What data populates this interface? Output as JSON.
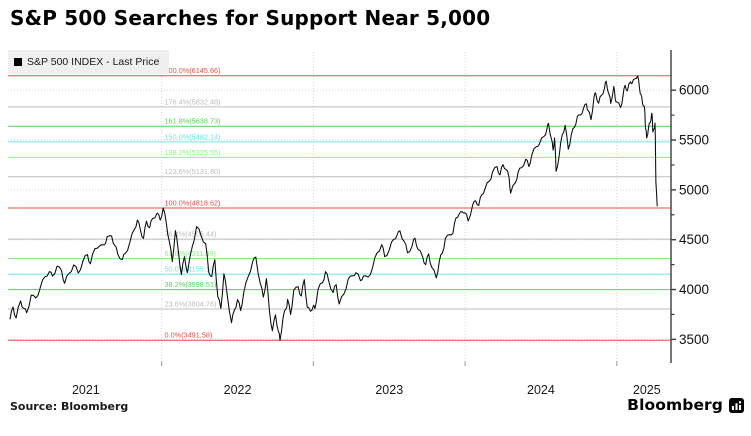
{
  "title": "S&P 500 Searches for Support Near 5,000",
  "legend": {
    "swatch": "■",
    "label": "S&P 500 INDEX - Last Price"
  },
  "source": "Source: Bloomberg",
  "brand": {
    "name": "Bloomberg",
    "logo": "bloomberg-logo-icon"
  },
  "chart_data": {
    "type": "line",
    "title": "S&P 500 Searches for Support Near 5,000",
    "xlabel": "",
    "ylabel": "",
    "grid": true,
    "grid_color": "#d6d6d6",
    "axis_color": "#3c3c3c",
    "tick_label_color": "#111111",
    "x_axis": {
      "years": [
        2021,
        2022,
        2023,
        2024,
        2025
      ]
    },
    "y_axis": {
      "side": "right",
      "major_ticks": [
        3500,
        4000,
        4500,
        5000,
        5500,
        6000
      ],
      "minor_ticks": [
        3750,
        4250,
        4750,
        5250,
        5750
      ],
      "range": [
        3350,
        6310
      ]
    },
    "fib_levels": [
      {
        "pct": "200.0%",
        "value": 6145.66,
        "label": "200.0%(6145.66)",
        "color": "#e2504d"
      },
      {
        "pct": "176.4%",
        "value": 5832.48,
        "label": "176.4%(5832.48)",
        "color": "#bdbdbd"
      },
      {
        "pct": "161.8%",
        "value": 5638.73,
        "label": "161.8%(5638.73)",
        "color": "#50d45a"
      },
      {
        "pct": "150.0%",
        "value": 5482.14,
        "label": "150.0%(5482.14)",
        "color": "#6ce6e3"
      },
      {
        "pct": "138.2%",
        "value": 5325.55,
        "label": "138.2%(5325.55)",
        "color": "#8feb8f"
      },
      {
        "pct": "123.6%",
        "value": 5131.8,
        "label": "123.6%(5131.80)",
        "color": "#bdbdbd"
      },
      {
        "pct": "100.0%",
        "value": 4818.62,
        "label": "100.0%(4818.62)",
        "color": "#e2504d"
      },
      {
        "pct": "76.4%",
        "value": 4505.44,
        "label": "76.4%(4505.44)",
        "color": "#bdbdbd"
      },
      {
        "pct": "61.8%",
        "value": 4311.69,
        "label": "61.8%(4311.69)",
        "color": "#8feb8f"
      },
      {
        "pct": "50.0%",
        "value": 4155.1,
        "label": "50.0%(4155.10)",
        "color": "#6ce6e3"
      },
      {
        "pct": "38.2%",
        "value": 3998.51,
        "label": "38.2%(3998.51)",
        "color": "#50d45a"
      },
      {
        "pct": "23.6%",
        "value": 3804.76,
        "label": "23.6%(3804.76)",
        "color": "#bdbdbd"
      },
      {
        "pct": "0.0%",
        "value": 3491.58,
        "label": "0.0%(3491.58)",
        "color": "#e2504d"
      }
    ],
    "series": [
      {
        "name": "S&P 500 INDEX - Last Price",
        "color": "#0a0a0a",
        "points": [
          [
            2021.0,
            3700
          ],
          [
            2021.02,
            3824
          ],
          [
            2021.04,
            3714
          ],
          [
            2021.07,
            3886
          ],
          [
            2021.09,
            3811
          ],
          [
            2021.11,
            3768
          ],
          [
            2021.14,
            3943
          ],
          [
            2021.17,
            3915
          ],
          [
            2021.2,
            4020
          ],
          [
            2021.23,
            4128
          ],
          [
            2021.26,
            4180
          ],
          [
            2021.28,
            4135
          ],
          [
            2021.31,
            4233
          ],
          [
            2021.34,
            4188
          ],
          [
            2021.36,
            4063
          ],
          [
            2021.39,
            4163
          ],
          [
            2021.42,
            4247
          ],
          [
            2021.45,
            4166
          ],
          [
            2021.48,
            4281
          ],
          [
            2021.51,
            4352
          ],
          [
            2021.53,
            4258
          ],
          [
            2021.56,
            4412
          ],
          [
            2021.59,
            4437
          ],
          [
            2021.62,
            4448
          ],
          [
            2021.64,
            4528
          ],
          [
            2021.67,
            4537
          ],
          [
            2021.69,
            4444
          ],
          [
            2021.71,
            4357
          ],
          [
            2021.74,
            4300
          ],
          [
            2021.76,
            4364
          ],
          [
            2021.79,
            4472
          ],
          [
            2021.82,
            4605
          ],
          [
            2021.84,
            4698
          ],
          [
            2021.86,
            4595
          ],
          [
            2021.88,
            4513
          ],
          [
            2021.9,
            4686
          ],
          [
            2021.92,
            4620
          ],
          [
            2021.94,
            4712
          ],
          [
            2021.97,
            4766
          ],
          [
            2021.99,
            4697
          ],
          [
            2022.01,
            4818
          ],
          [
            2022.03,
            4670
          ],
          [
            2022.05,
            4483
          ],
          [
            2022.07,
            4280
          ],
          [
            2022.09,
            4590
          ],
          [
            2022.11,
            4380
          ],
          [
            2022.13,
            4150
          ],
          [
            2022.15,
            4330
          ],
          [
            2022.17,
            4170
          ],
          [
            2022.2,
            4420
          ],
          [
            2022.23,
            4631
          ],
          [
            2022.26,
            4540
          ],
          [
            2022.29,
            4460
          ],
          [
            2022.31,
            4175
          ],
          [
            2022.33,
            4131
          ],
          [
            2022.35,
            4300
          ],
          [
            2022.37,
            3930
          ],
          [
            2022.39,
            3810
          ],
          [
            2022.41,
            4158
          ],
          [
            2022.43,
            3970
          ],
          [
            2022.46,
            3667
          ],
          [
            2022.48,
            3795
          ],
          [
            2022.5,
            3900
          ],
          [
            2022.52,
            3790
          ],
          [
            2022.54,
            3960
          ],
          [
            2022.57,
            4130
          ],
          [
            2022.6,
            4280
          ],
          [
            2022.62,
            4325
          ],
          [
            2022.65,
            4060
          ],
          [
            2022.67,
            3924
          ],
          [
            2022.69,
            4110
          ],
          [
            2022.71,
            3790
          ],
          [
            2022.73,
            3585
          ],
          [
            2022.75,
            3745
          ],
          [
            2022.77,
            3577
          ],
          [
            2022.78,
            3491
          ],
          [
            2022.8,
            3720
          ],
          [
            2022.82,
            3808
          ],
          [
            2022.83,
            3901
          ],
          [
            2022.85,
            3748
          ],
          [
            2022.87,
            3992
          ],
          [
            2022.9,
            4027
          ],
          [
            2022.92,
            3934
          ],
          [
            2022.94,
            4100
          ],
          [
            2022.96,
            3822
          ],
          [
            2022.98,
            3783
          ],
          [
            2023.0,
            3839
          ],
          [
            2023.01,
            3808
          ],
          [
            2023.03,
            3999
          ],
          [
            2023.06,
            4070
          ],
          [
            2023.08,
            4179
          ],
          [
            2023.1,
            4090
          ],
          [
            2023.13,
            3970
          ],
          [
            2023.15,
            4048
          ],
          [
            2023.17,
            3855
          ],
          [
            2023.2,
            3951
          ],
          [
            2023.23,
            4109
          ],
          [
            2023.26,
            4138
          ],
          [
            2023.28,
            4169
          ],
          [
            2023.31,
            4090
          ],
          [
            2023.33,
            4136
          ],
          [
            2023.36,
            4124
          ],
          [
            2023.39,
            4221
          ],
          [
            2023.42,
            4369
          ],
          [
            2023.45,
            4450
          ],
          [
            2023.47,
            4330
          ],
          [
            2023.5,
            4399
          ],
          [
            2023.53,
            4505
          ],
          [
            2023.55,
            4537
          ],
          [
            2023.57,
            4589
          ],
          [
            2023.6,
            4480
          ],
          [
            2023.62,
            4370
          ],
          [
            2023.65,
            4433
          ],
          [
            2023.67,
            4515
          ],
          [
            2023.69,
            4402
          ],
          [
            2023.72,
            4330
          ],
          [
            2023.74,
            4250
          ],
          [
            2023.76,
            4358
          ],
          [
            2023.78,
            4224
          ],
          [
            2023.81,
            4117
          ],
          [
            2023.83,
            4283
          ],
          [
            2023.85,
            4365
          ],
          [
            2023.87,
            4514
          ],
          [
            2023.9,
            4550
          ],
          [
            2023.92,
            4567
          ],
          [
            2023.94,
            4719
          ],
          [
            2023.96,
            4754
          ],
          [
            2023.98,
            4781
          ],
          [
            2024.0,
            4770
          ],
          [
            2024.02,
            4688
          ],
          [
            2024.05,
            4850
          ],
          [
            2024.07,
            4890
          ],
          [
            2024.09,
            4845
          ],
          [
            2024.11,
            4953
          ],
          [
            2024.13,
            5005
          ],
          [
            2024.16,
            5088
          ],
          [
            2024.18,
            5175
          ],
          [
            2024.21,
            5234
          ],
          [
            2024.23,
            5150
          ],
          [
            2024.25,
            5254
          ],
          [
            2024.27,
            5205
          ],
          [
            2024.29,
            5123
          ],
          [
            2024.3,
            4967
          ],
          [
            2024.33,
            5070
          ],
          [
            2024.35,
            5180
          ],
          [
            2024.37,
            5222
          ],
          [
            2024.4,
            5308
          ],
          [
            2024.42,
            5235
          ],
          [
            2024.44,
            5352
          ],
          [
            2024.47,
            5433
          ],
          [
            2024.49,
            5460
          ],
          [
            2024.52,
            5537
          ],
          [
            2024.54,
            5615
          ],
          [
            2024.55,
            5667
          ],
          [
            2024.57,
            5505
          ],
          [
            2024.58,
            5399
          ],
          [
            2024.59,
            5522
          ],
          [
            2024.6,
            5186
          ],
          [
            2024.62,
            5344
          ],
          [
            2024.64,
            5554
          ],
          [
            2024.66,
            5648
          ],
          [
            2024.68,
            5408
          ],
          [
            2024.7,
            5554
          ],
          [
            2024.72,
            5626
          ],
          [
            2024.74,
            5738
          ],
          [
            2024.76,
            5751
          ],
          [
            2024.78,
            5815
          ],
          [
            2024.8,
            5864
          ],
          [
            2024.81,
            5797
          ],
          [
            2024.83,
            5705
          ],
          [
            2024.85,
            5929
          ],
          [
            2024.86,
            5973
          ],
          [
            2024.88,
            5870
          ],
          [
            2024.9,
            5949
          ],
          [
            2024.92,
            6032
          ],
          [
            2024.93,
            6090
          ],
          [
            2024.95,
            5951
          ],
          [
            2024.96,
            5867
          ],
          [
            2024.98,
            6038
          ],
          [
            2024.99,
            5906
          ],
          [
            2025.0,
            5882
          ],
          [
            2025.025,
            5827
          ],
          [
            2025.04,
            5937
          ],
          [
            2025.055,
            6049
          ],
          [
            2025.07,
            5994
          ],
          [
            2025.09,
            6084
          ],
          [
            2025.1,
            6068
          ],
          [
            2025.12,
            6115
          ],
          [
            2025.137,
            6144
          ],
          [
            2025.15,
            6013
          ],
          [
            2025.16,
            5955
          ],
          [
            2025.17,
            5861
          ],
          [
            2025.18,
            5842
          ],
          [
            2025.185,
            5770
          ],
          [
            2025.19,
            5615
          ],
          [
            2025.197,
            5521
          ],
          [
            2025.21,
            5638
          ],
          [
            2025.22,
            5675
          ],
          [
            2025.23,
            5768
          ],
          [
            2025.235,
            5693
          ],
          [
            2025.238,
            5581
          ],
          [
            2025.247,
            5612
          ],
          [
            2025.252,
            5671
          ],
          [
            2025.255,
            5396
          ],
          [
            2025.258,
            5074
          ],
          [
            2025.266,
            4835
          ]
        ]
      }
    ]
  }
}
